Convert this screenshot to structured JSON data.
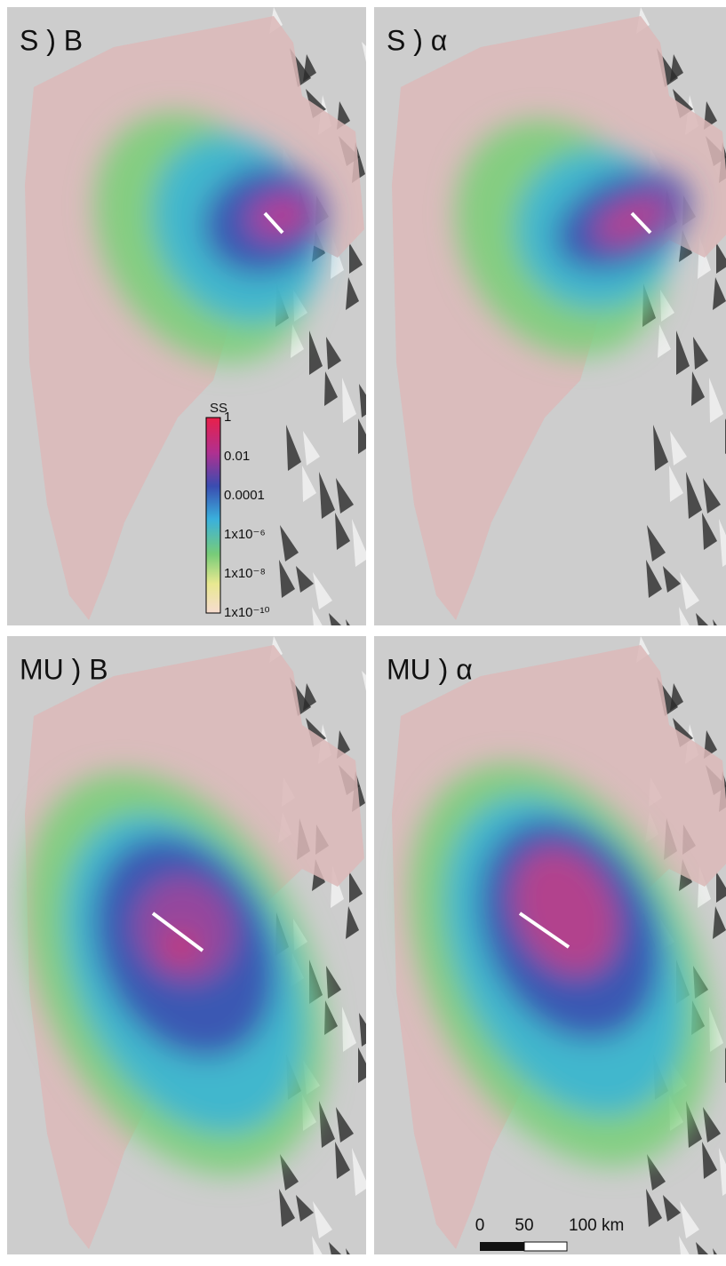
{
  "panels": [
    {
      "label": "S ) B"
    },
    {
      "label": "S ) α"
    },
    {
      "label": "MU ) B"
    },
    {
      "label": "MU ) α"
    }
  ],
  "colorbar": {
    "title": "SS",
    "labels": [
      "1",
      "0.01",
      "0.0001",
      "1x10⁻⁶",
      "1x10⁻⁸",
      "1x10⁻¹⁰"
    ]
  },
  "scalebar": {
    "labels": [
      "0",
      "50",
      "100 km"
    ]
  }
}
